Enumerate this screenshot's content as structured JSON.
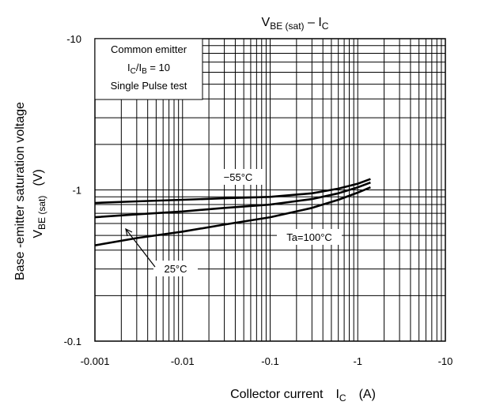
{
  "chart_data": {
    "type": "line",
    "title": {
      "main": "V",
      "main_sub": "BE (sat)",
      "dash": " – I",
      "dash_sub": "C"
    },
    "xlabel": {
      "text": "Collector current",
      "sym": "I",
      "sym_sub": "C",
      "unit": "(A)"
    },
    "ylabel": {
      "line1": "Base -emitter saturation voltage",
      "sym": "V",
      "sym_sub": "BE (sat)",
      "unit": "(V)"
    },
    "x_scale": "log",
    "y_scale": "log",
    "xlim": [
      -0.001,
      -10
    ],
    "ylim": [
      -0.1,
      -10
    ],
    "grid": true,
    "x_ticks": [
      "-0.001",
      "-0.01",
      "-0.1",
      "-1",
      "-10"
    ],
    "y_ticks": [
      "-10",
      "-1",
      "-0.1"
    ],
    "conditions": {
      "line1": "Common emitter",
      "line2_a": "I",
      "line2_a_sub": "C",
      "line2_b": "/I",
      "line2_b_sub": "B",
      "line2_c": " = 10",
      "line3": "Single Pulse test"
    },
    "series": [
      {
        "name": "−55°C",
        "x": [
          -0.001,
          -0.003,
          -0.01,
          -0.03,
          -0.1,
          -0.3,
          -0.6,
          -1.0,
          -1.4
        ],
        "y": [
          -0.82,
          -0.84,
          -0.86,
          -0.88,
          -0.9,
          -0.95,
          -1.02,
          -1.1,
          -1.18
        ]
      },
      {
        "name": "25°C",
        "x": [
          -0.001,
          -0.003,
          -0.01,
          -0.03,
          -0.1,
          -0.3,
          -0.6,
          -1.0,
          -1.4
        ],
        "y": [
          -0.66,
          -0.69,
          -0.72,
          -0.76,
          -0.8,
          -0.87,
          -0.95,
          -1.04,
          -1.12
        ]
      },
      {
        "name": "Ta=100°C",
        "x": [
          -0.001,
          -0.003,
          -0.01,
          -0.03,
          -0.1,
          -0.3,
          -0.6,
          -1.0,
          -1.4
        ],
        "y": [
          -0.43,
          -0.48,
          -0.53,
          -0.59,
          -0.66,
          -0.76,
          -0.86,
          -0.96,
          -1.04
        ]
      }
    ],
    "annotations": {
      "m55": "−55°C",
      "t25": "25°C",
      "t100": "Ta=100°C"
    }
  }
}
